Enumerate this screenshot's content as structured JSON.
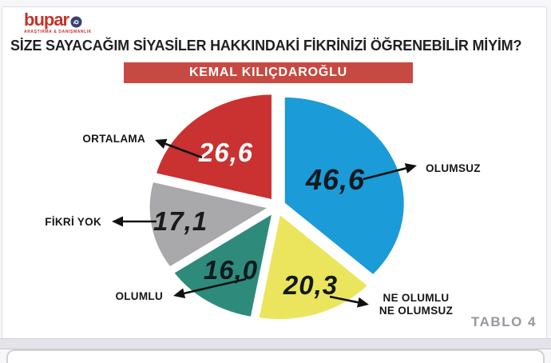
{
  "logo": {
    "name": "bupar",
    "tagline": "ARAŞTIRMA & DANIŞMANLIK"
  },
  "title": "SİZE SAYACAĞIM SİYASİLER HAKKINDAKİ FİKRİNİZİ ÖĞRENEBİLİR MİYİM?",
  "banner": {
    "label": "KEMAL KILIÇDAROĞLU"
  },
  "footer": {
    "label": "TABLO 4"
  },
  "colors": {
    "banner_bg": "#c74a42",
    "logo_red": "#c5322b",
    "logo_icon_navy": "#3a4272",
    "title_text": "#1f2023",
    "footer_text": "#97979f",
    "arrow_black": "#111111"
  },
  "chart_data": {
    "type": "pie",
    "title": "KEMAL KILIÇDAROĞLU",
    "direction": "clockwise",
    "start_angle_deg": 0,
    "label_style": "exploded slices with callout arrows",
    "segments": [
      {
        "label": "OLUMSUZ",
        "value": 46.6,
        "display_value": "46,6",
        "color": "#1b9bd7",
        "value_text_color": "#10191f"
      },
      {
        "label": "NE OLUMLU NE OLUMSUZ",
        "value": 20.3,
        "display_value": "20,3",
        "color": "#ebe55e",
        "value_text_color": "#10191f"
      },
      {
        "label": "OLUMLU",
        "value": 16.0,
        "display_value": "16,0",
        "color": "#2e8b7c",
        "value_text_color": "#10191f"
      },
      {
        "label": "FİKRİ YOK",
        "value": 17.1,
        "display_value": "17,1",
        "color": "#a9a9ab",
        "value_text_color": "#1a1a1a"
      },
      {
        "label": "ORTALAMA",
        "value": 26.6,
        "display_value": "26,6",
        "color": "#c93230",
        "value_text_color": "#ffffff"
      }
    ]
  }
}
